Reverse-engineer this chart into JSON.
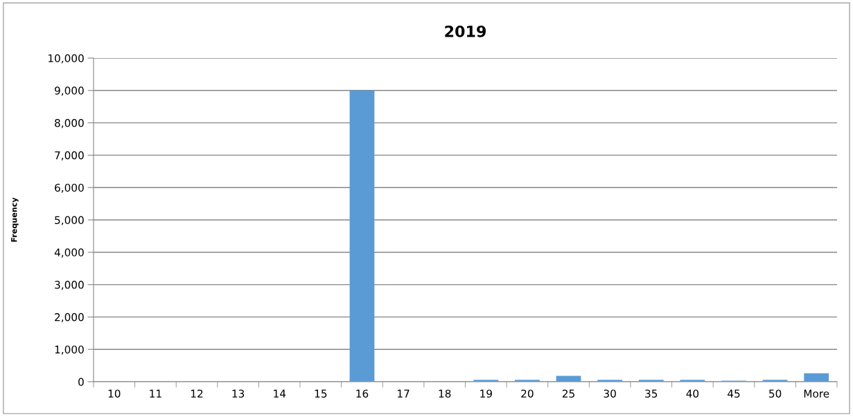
{
  "chart_data": {
    "type": "bar",
    "title": "2019",
    "ylabel": "Frequency",
    "categories": [
      "10",
      "11",
      "12",
      "13",
      "14",
      "15",
      "16",
      "17",
      "18",
      "19",
      "20",
      "25",
      "30",
      "35",
      "40",
      "45",
      "50",
      "More"
    ],
    "values": [
      0,
      0,
      0,
      0,
      0,
      0,
      9000,
      0,
      0,
      60,
      60,
      180,
      60,
      60,
      60,
      30,
      60,
      260
    ],
    "color": "#5b9bd5",
    "ylim": [
      0,
      10000
    ],
    "yticks": [
      {
        "value": 0,
        "label": "0"
      },
      {
        "value": 1000,
        "label": "1,000"
      },
      {
        "value": 2000,
        "label": "2,000"
      },
      {
        "value": 3000,
        "label": "3,000"
      },
      {
        "value": 4000,
        "label": "4,000"
      },
      {
        "value": 5000,
        "label": "5,000"
      },
      {
        "value": 6000,
        "label": "6,000"
      },
      {
        "value": 7000,
        "label": "7,000"
      },
      {
        "value": 8000,
        "label": "8,000"
      },
      {
        "value": 9000,
        "label": "9,000"
      },
      {
        "value": 10000,
        "label": "10,000"
      }
    ],
    "grid": "y",
    "legend": false
  }
}
